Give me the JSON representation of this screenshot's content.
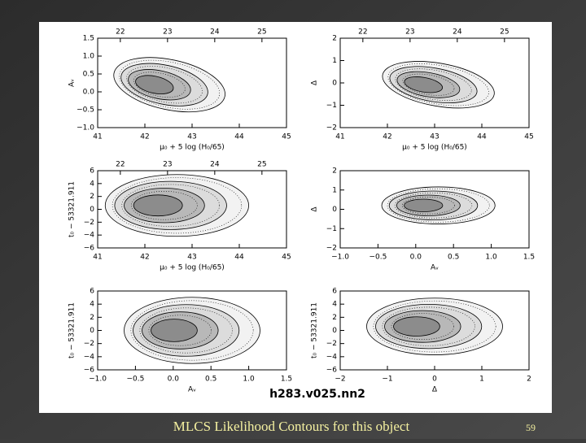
{
  "slide": {
    "caption": "MLCS Likelihood Contours for this object",
    "page_number": "59"
  },
  "figure": {
    "label": "h283.v025.nn2",
    "panels": [
      {
        "top_ticks": [
          "22",
          "23",
          "24",
          "25"
        ],
        "bottom_ticks": [
          "41",
          "42",
          "43",
          "44",
          "45"
        ],
        "left_ticks": [
          "1.5",
          "1.0",
          "0.5",
          "0.0",
          "−0.5",
          "−1.0"
        ],
        "x_label": "μ₀ + 5 log (H₀/65)",
        "y_label": "Aᵥ"
      },
      {
        "top_ticks": [
          "22",
          "23",
          "24",
          "25"
        ],
        "bottom_ticks": [
          "41",
          "42",
          "43",
          "44",
          "45"
        ],
        "left_ticks": [
          "2",
          "1",
          "0",
          "−1",
          "−2"
        ],
        "x_label": "μ₀ + 5 log (H₀/65)",
        "y_label": "Δ"
      },
      {
        "top_ticks": [
          "22",
          "23",
          "24",
          "25"
        ],
        "bottom_ticks": [
          "41",
          "42",
          "43",
          "44",
          "45"
        ],
        "left_ticks": [
          "6",
          "4",
          "2",
          "0",
          "−2",
          "−4",
          "−6"
        ],
        "x_label": "μ₀ + 5 log (H₀/65)",
        "y_label": "t₀ − 53321.911"
      },
      {
        "top_ticks": [],
        "bottom_ticks": [
          "−1.0",
          "−0.5",
          "0.0",
          "0.5",
          "1.0",
          "1.5"
        ],
        "left_ticks": [
          "2",
          "1",
          "0",
          "−1",
          "−2"
        ],
        "x_label": "Aᵥ",
        "y_label": "Δ"
      },
      {
        "top_ticks": [],
        "bottom_ticks": [
          "−1.0",
          "−0.5",
          "0.0",
          "0.5",
          "1.0",
          "1.5"
        ],
        "left_ticks": [
          "6",
          "4",
          "2",
          "0",
          "−2",
          "−4",
          "−6"
        ],
        "x_label": "Aᵥ",
        "y_label": "t₀ − 53321.911"
      },
      {
        "top_ticks": [],
        "bottom_ticks": [
          "−2",
          "−1",
          "0",
          "1",
          "2"
        ],
        "left_ticks": [
          "6",
          "4",
          "2",
          "0",
          "−2",
          "−4",
          "−6"
        ],
        "x_label": "Δ",
        "y_label": "t₀ − 53321.911"
      }
    ]
  }
}
